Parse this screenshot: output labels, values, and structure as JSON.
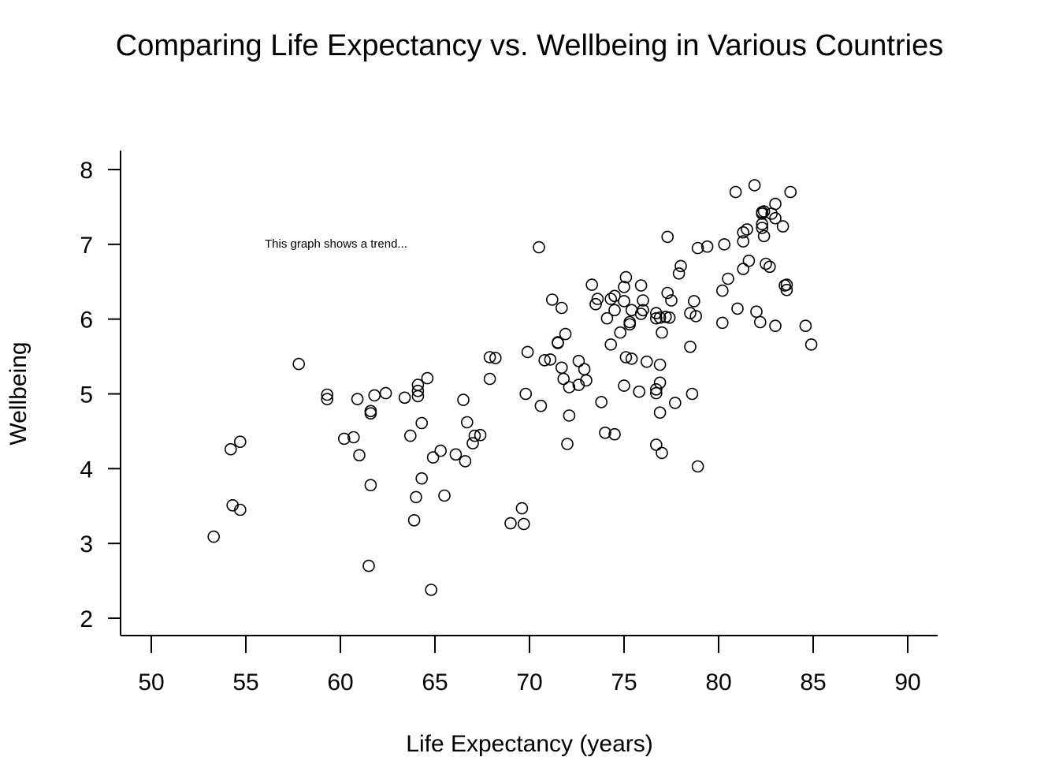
{
  "chart_data": {
    "type": "scatter",
    "title": "Comparing Life Expectancy vs. Wellbeing in Various Countries",
    "xlabel": "Life Expectancy (years)",
    "ylabel": "Wellbeing",
    "xlim": [
      50,
      90
    ],
    "ylim": [
      2,
      8
    ],
    "xticks": [
      "50",
      "55",
      "60",
      "65",
      "70",
      "75",
      "80",
      "85",
      "90"
    ],
    "yticks": [
      "2",
      "3",
      "4",
      "5",
      "6",
      "7",
      "8"
    ],
    "grid": false,
    "annotation": "This graph shows a trend...",
    "points": [
      [
        53.3,
        3.09
      ],
      [
        54.2,
        4.26
      ],
      [
        54.3,
        3.51
      ],
      [
        54.7,
        3.45
      ],
      [
        54.7,
        4.36
      ],
      [
        57.8,
        5.4
      ],
      [
        59.3,
        4.93
      ],
      [
        59.3,
        4.99
      ],
      [
        60.2,
        4.4
      ],
      [
        60.7,
        4.42
      ],
      [
        60.9,
        4.93
      ],
      [
        61.0,
        4.18
      ],
      [
        61.5,
        2.7
      ],
      [
        61.6,
        4.74
      ],
      [
        61.6,
        4.77
      ],
      [
        61.6,
        3.78
      ],
      [
        61.8,
        4.98
      ],
      [
        62.4,
        5.01
      ],
      [
        63.4,
        4.95
      ],
      [
        63.7,
        4.44
      ],
      [
        63.9,
        3.31
      ],
      [
        64.0,
        3.62
      ],
      [
        64.1,
        4.97
      ],
      [
        64.1,
        5.04
      ],
      [
        64.1,
        5.12
      ],
      [
        64.3,
        4.61
      ],
      [
        64.3,
        3.87
      ],
      [
        64.6,
        5.21
      ],
      [
        64.8,
        2.38
      ],
      [
        64.9,
        4.15
      ],
      [
        65.3,
        4.24
      ],
      [
        65.5,
        3.64
      ],
      [
        66.1,
        4.19
      ],
      [
        66.5,
        4.92
      ],
      [
        66.6,
        4.1
      ],
      [
        66.7,
        4.62
      ],
      [
        67.0,
        4.34
      ],
      [
        67.1,
        4.44
      ],
      [
        67.4,
        4.45
      ],
      [
        67.9,
        5.2
      ],
      [
        67.9,
        5.49
      ],
      [
        68.2,
        5.48
      ],
      [
        69.0,
        3.27
      ],
      [
        69.6,
        3.47
      ],
      [
        69.7,
        3.26
      ],
      [
        69.8,
        5.0
      ],
      [
        69.9,
        5.56
      ],
      [
        70.5,
        6.96
      ],
      [
        70.6,
        4.84
      ],
      [
        70.8,
        5.45
      ],
      [
        71.1,
        5.46
      ],
      [
        71.2,
        6.26
      ],
      [
        71.5,
        5.69
      ],
      [
        71.5,
        5.68
      ],
      [
        71.7,
        5.35
      ],
      [
        71.7,
        6.15
      ],
      [
        71.8,
        5.2
      ],
      [
        71.9,
        5.8
      ],
      [
        72.0,
        4.33
      ],
      [
        72.1,
        4.71
      ],
      [
        72.1,
        5.09
      ],
      [
        72.6,
        5.44
      ],
      [
        72.6,
        5.12
      ],
      [
        72.9,
        5.33
      ],
      [
        73.0,
        5.18
      ],
      [
        73.3,
        6.46
      ],
      [
        73.5,
        6.2
      ],
      [
        73.6,
        6.27
      ],
      [
        73.8,
        4.89
      ],
      [
        74.0,
        4.48
      ],
      [
        74.1,
        6.01
      ],
      [
        74.3,
        6.27
      ],
      [
        74.3,
        5.66
      ],
      [
        74.5,
        6.31
      ],
      [
        74.5,
        6.12
      ],
      [
        74.5,
        4.46
      ],
      [
        74.8,
        5.82
      ],
      [
        75.0,
        6.43
      ],
      [
        75.0,
        6.24
      ],
      [
        75.0,
        5.11
      ],
      [
        75.1,
        5.49
      ],
      [
        75.1,
        6.56
      ],
      [
        75.3,
        5.96
      ],
      [
        75.3,
        5.93
      ],
      [
        75.4,
        6.12
      ],
      [
        75.4,
        5.47
      ],
      [
        75.8,
        5.03
      ],
      [
        75.9,
        6.45
      ],
      [
        75.9,
        6.07
      ],
      [
        76.0,
        6.25
      ],
      [
        76.0,
        6.12
      ],
      [
        76.2,
        5.43
      ],
      [
        76.7,
        6.08
      ],
      [
        76.7,
        6.01
      ],
      [
        76.7,
        5.06
      ],
      [
        76.7,
        5.01
      ],
      [
        76.7,
        4.32
      ],
      [
        76.9,
        6.02
      ],
      [
        76.9,
        5.39
      ],
      [
        76.9,
        5.15
      ],
      [
        76.9,
        4.75
      ],
      [
        77.0,
        5.82
      ],
      [
        77.0,
        4.21
      ],
      [
        77.2,
        6.03
      ],
      [
        77.3,
        7.1
      ],
      [
        77.3,
        6.35
      ],
      [
        77.4,
        6.02
      ],
      [
        77.5,
        6.25
      ],
      [
        77.7,
        4.88
      ],
      [
        77.9,
        6.61
      ],
      [
        78.0,
        6.71
      ],
      [
        78.5,
        6.08
      ],
      [
        78.5,
        5.63
      ],
      [
        78.6,
        5.0
      ],
      [
        78.7,
        6.24
      ],
      [
        78.8,
        6.04
      ],
      [
        78.9,
        6.95
      ],
      [
        78.9,
        4.03
      ],
      [
        79.4,
        6.97
      ],
      [
        80.2,
        6.38
      ],
      [
        80.2,
        5.95
      ],
      [
        80.3,
        7.0
      ],
      [
        80.5,
        6.54
      ],
      [
        80.9,
        7.7
      ],
      [
        81.0,
        6.14
      ],
      [
        81.3,
        7.16
      ],
      [
        81.3,
        7.04
      ],
      [
        81.3,
        6.67
      ],
      [
        81.5,
        7.2
      ],
      [
        81.6,
        6.78
      ],
      [
        81.9,
        7.79
      ],
      [
        82.0,
        6.1
      ],
      [
        82.2,
        5.96
      ],
      [
        82.3,
        7.43
      ],
      [
        82.3,
        7.41
      ],
      [
        82.3,
        7.27
      ],
      [
        82.3,
        7.22
      ],
      [
        82.4,
        7.44
      ],
      [
        82.4,
        7.11
      ],
      [
        82.5,
        6.74
      ],
      [
        82.7,
        6.7
      ],
      [
        82.8,
        7.41
      ],
      [
        83.0,
        7.54
      ],
      [
        83.0,
        7.35
      ],
      [
        83.0,
        5.91
      ],
      [
        83.4,
        7.24
      ],
      [
        83.5,
        6.45
      ],
      [
        83.6,
        6.46
      ],
      [
        83.6,
        6.39
      ],
      [
        83.8,
        7.7
      ],
      [
        84.6,
        5.91
      ],
      [
        84.9,
        5.66
      ]
    ]
  }
}
